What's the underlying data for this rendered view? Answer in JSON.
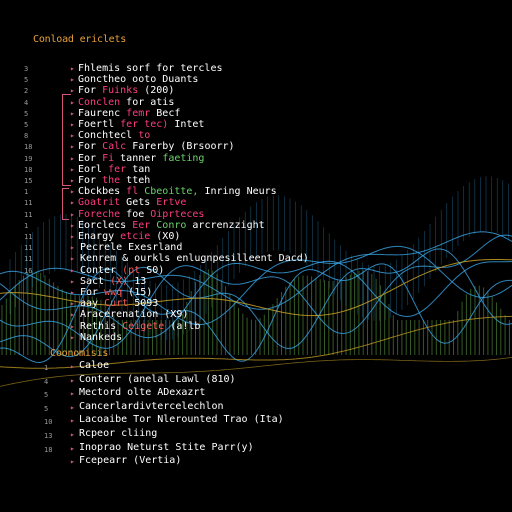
{
  "colors": {
    "background": "#000000",
    "header": "#e8a03a",
    "text": "#ffffff",
    "accent_pink": "#ff3d7f",
    "accent_green": "#6bd36b",
    "accent_red": "#ff5a5a",
    "wave_blue": "#3aa6e8",
    "wave_gold": "#c9a227",
    "wave_green": "#4f8a3a",
    "gutter": "#d4547a"
  },
  "section_one": {
    "title": "Conload ericlets",
    "line_numbers": [
      "3",
      "5",
      "2",
      "4",
      "5",
      "5",
      "8",
      "18",
      "19",
      "18",
      "15",
      "1",
      "11",
      "11",
      "1",
      "11",
      "11",
      "11",
      "16"
    ],
    "lines": [
      {
        "parts": [
          {
            "text": "Fhlemis sorf for tercles",
            "color": "#ffffff"
          }
        ]
      },
      {
        "parts": [
          {
            "text": "Gonctheo ooto Duants",
            "color": "#ffffff"
          }
        ]
      },
      {
        "parts": [
          {
            "text": "For ",
            "color": "#ffffff"
          },
          {
            "text": "Fuinks",
            "color": "#ff3d7f"
          },
          {
            "text": " (200)",
            "color": "#ffffff"
          }
        ]
      },
      {
        "parts": [
          {
            "text": "Conclen ",
            "color": "#ff3d7f"
          },
          {
            "text": "for atis",
            "color": "#ffffff"
          }
        ]
      },
      {
        "parts": [
          {
            "text": "Faurenc ",
            "color": "#ffffff"
          },
          {
            "text": "femr",
            "color": "#ff3d7f"
          },
          {
            "text": " Becf",
            "color": "#ffffff"
          }
        ]
      },
      {
        "parts": [
          {
            "text": "Foertl ",
            "color": "#ffffff"
          },
          {
            "text": "fer tec)",
            "color": "#ff3d7f"
          },
          {
            "text": " Intet",
            "color": "#ffffff"
          }
        ]
      },
      {
        "parts": [
          {
            "text": "Conchtecl ",
            "color": "#ffffff"
          },
          {
            "text": "to",
            "color": "#ff3d7f"
          }
        ]
      },
      {
        "parts": [
          {
            "text": "For ",
            "color": "#ffffff"
          },
          {
            "text": "Calc",
            "color": "#ff3d7f"
          },
          {
            "text": " Farerby (Brsoorr)",
            "color": "#ffffff"
          }
        ]
      },
      {
        "parts": [
          {
            "text": "Eor ",
            "color": "#ffffff"
          },
          {
            "text": "Fi",
            "color": "#ff3d7f"
          },
          {
            "text": " tanner ",
            "color": "#ffffff"
          },
          {
            "text": "faeting",
            "color": "#6bd36b"
          }
        ]
      },
      {
        "parts": [
          {
            "text": "Eorl ",
            "color": "#ffffff"
          },
          {
            "text": "fer",
            "color": "#ff3d7f"
          },
          {
            "text": " tan",
            "color": "#ffffff"
          }
        ]
      },
      {
        "parts": [
          {
            "text": "For ",
            "color": "#ffffff"
          },
          {
            "text": "the",
            "color": "#ff3d7f"
          },
          {
            "text": " tteh",
            "color": "#ffffff"
          }
        ]
      },
      {
        "parts": [
          {
            "text": "Cbckbes ",
            "color": "#ffffff"
          },
          {
            "text": "fl",
            "color": "#ff3d7f"
          },
          {
            "text": "    ",
            "color": "#ffffff"
          },
          {
            "text": "Cbeoitte,",
            "color": "#6bd36b"
          },
          {
            "text": " Inring Neurs",
            "color": "#ffffff"
          }
        ]
      },
      {
        "parts": [
          {
            "text": "Goatrit ",
            "color": "#ff3d7f"
          },
          {
            "text": "Gets ",
            "color": "#ffffff"
          },
          {
            "text": "Ertve",
            "color": "#ff3d7f"
          }
        ]
      },
      {
        "parts": [
          {
            "text": "Foreche ",
            "color": "#ff3d7f"
          },
          {
            "text": "foe ",
            "color": "#ffffff"
          },
          {
            "text": "Oiprteces",
            "color": "#ff3d7f"
          }
        ]
      },
      {
        "parts": [
          {
            "text": "Eorclecs ",
            "color": "#ffffff"
          },
          {
            "text": "Eer ",
            "color": "#ff3d7f"
          },
          {
            "text": "Conro",
            "color": "#6bd36b"
          },
          {
            "text": " arcrenzzight",
            "color": "#ffffff"
          }
        ]
      },
      {
        "parts": [
          {
            "text": "Enargy ",
            "color": "#ffffff"
          },
          {
            "text": "etcie",
            "color": "#ff3d7f"
          },
          {
            "text": " (X0)",
            "color": "#ffffff"
          }
        ]
      },
      {
        "parts": [
          {
            "text": "Pecrele Exesrland",
            "color": "#ffffff"
          }
        ]
      },
      {
        "parts": [
          {
            "text": "Kenrem & ourkls enlugnpesilleent Dacd)",
            "color": "#ffffff"
          }
        ]
      },
      {
        "parts": [
          {
            "text": "Conter ",
            "color": "#ffffff"
          },
          {
            "text": "(pt ",
            "color": "#ff5a5a"
          },
          {
            "text": "S0)",
            "color": "#ffffff"
          }
        ]
      },
      {
        "parts": [
          {
            "text": "Sact ",
            "color": "#ffffff"
          },
          {
            "text": "(X)",
            "color": "#ff5a5a"
          },
          {
            "text": " 13",
            "color": "#ffffff"
          }
        ]
      },
      {
        "parts": [
          {
            "text": "For ",
            "color": "#ffffff"
          },
          {
            "text": "wwq",
            "color": "#ff5a5a"
          },
          {
            "text": " (15)",
            "color": "#ffffff"
          }
        ]
      },
      {
        "parts": [
          {
            "text": "aay ",
            "color": "#ffffff"
          },
          {
            "text": "Curt",
            "color": "#ff5a5a"
          },
          {
            "text": " 5093",
            "color": "#ffffff"
          }
        ]
      },
      {
        "parts": [
          {
            "text": "Aracerenation (X9)",
            "color": "#ffffff"
          }
        ]
      },
      {
        "parts": [
          {
            "text": "Rethis ",
            "color": "#ffffff"
          },
          {
            "text": "Ceigete",
            "color": "#ff5a5a"
          },
          {
            "text": " (a!lb",
            "color": "#ffffff"
          }
        ]
      },
      {
        "parts": [
          {
            "text": "Nankeds",
            "color": "#ffffff"
          }
        ]
      }
    ]
  },
  "section_two": {
    "title": "Coonomisis",
    "line_numbers": [
      "1",
      "4",
      "5",
      "5",
      "10",
      "13",
      "18"
    ],
    "lines": [
      {
        "text": "Caloe"
      },
      {
        "text": "Conterr (anelal Lawl (810)"
      },
      {
        "text": "Mectord olte ADexazrt"
      },
      {
        "text": "Cancerlardivtercelechlon"
      },
      {
        "text": "Lacoaibe Tor Nlerounted Trao (Ita)"
      },
      {
        "text": "Rcpeor cliing"
      },
      {
        "text": "Inoprao Neturst Stite Parr(y)"
      },
      {
        "text": "Fcepearr (Vertia)"
      }
    ]
  }
}
